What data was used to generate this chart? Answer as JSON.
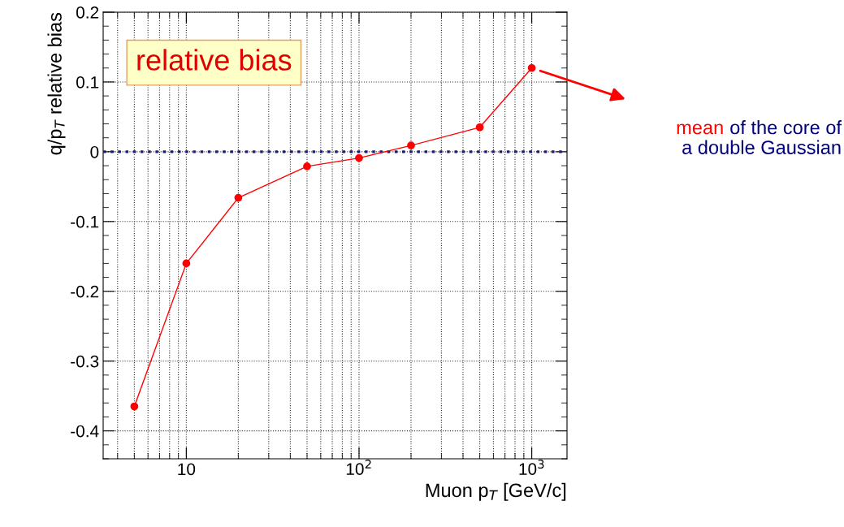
{
  "chart_data": {
    "type": "line",
    "xlabel": "Muon p$_{T}$ [GeV/c]",
    "ylabel": "q/p$_{T}$ relative bias",
    "log": "x",
    "x": [
      5,
      10,
      20,
      50,
      100,
      200,
      500,
      1000
    ],
    "series": [
      {
        "color": "#ff0000",
        "values": [
          -0.365,
          -0.16,
          -0.066,
          -0.021,
          -0.009,
          0.009,
          0.035,
          0.12
        ]
      }
    ],
    "marker": "circle",
    "line_style": "solid",
    "xlim": [
      3.3,
      1600
    ],
    "xticks": [
      10,
      {
        "value": 100,
        "label": "10$^{2}$"
      },
      {
        "value": 1000,
        "label": "10$^{3}$"
      }
    ],
    "ylim": [
      -0.44,
      0.2
    ],
    "yticks": [
      -0.4,
      -0.3,
      -0.2,
      -0.1,
      0,
      0.1,
      0.2
    ],
    "grid": true,
    "ref_lines": [
      {
        "axis": "y",
        "value": 0,
        "color": "#1a1a80",
        "line_style": "dotted"
      }
    ],
    "annotations": [
      "relative bias",
      "mean",
      "of the core of\na double Gaussian"
    ]
  }
}
